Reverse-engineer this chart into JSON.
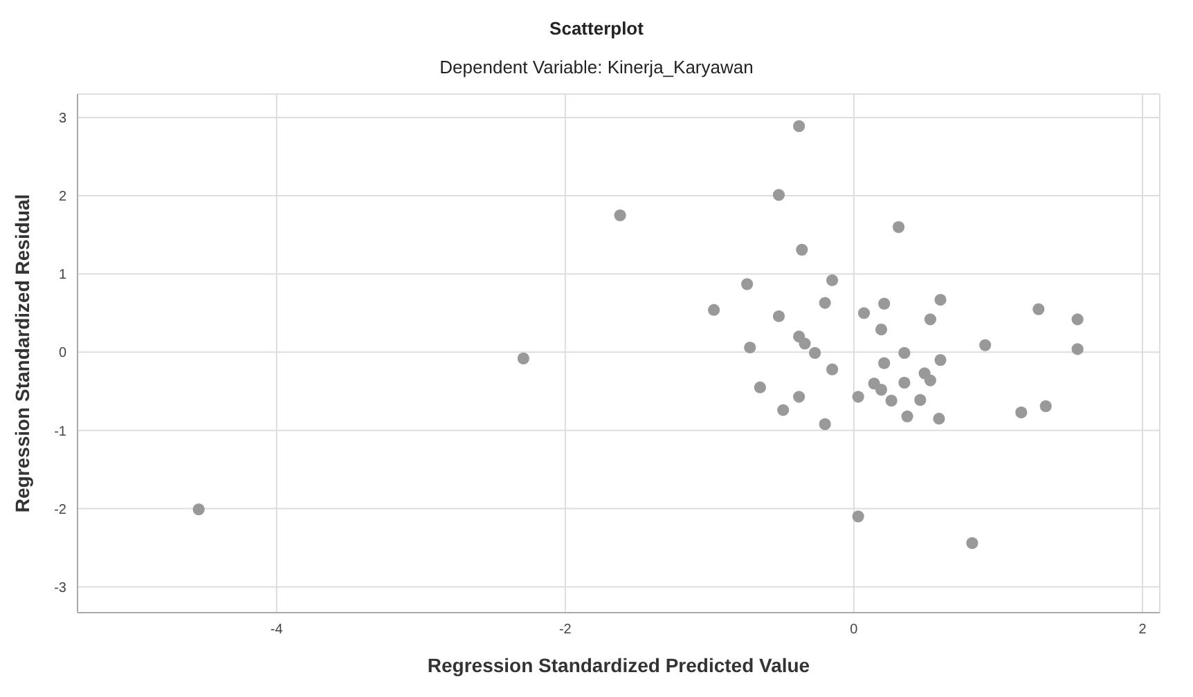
{
  "chart_data": {
    "type": "scatter",
    "title": "Scatterplot",
    "subtitle": "Dependent Variable: Kinerja_Karyawan",
    "xlabel": "Regression Standardized Predicted Value",
    "ylabel": "Regression Standardized Residual",
    "x": [
      -4.54,
      -2.29,
      -1.62,
      -0.38,
      -0.52,
      0.31,
      -0.36,
      -0.74,
      -0.15,
      -0.97,
      -0.52,
      -0.2,
      0.07,
      0.21,
      0.6,
      0.19,
      0.53,
      1.28,
      1.55,
      1.55,
      0.91,
      -0.72,
      -0.38,
      -0.34,
      -0.27,
      0.35,
      -0.15,
      0.21,
      0.6,
      0.49,
      0.53,
      -0.65,
      -0.38,
      -0.49,
      -0.2,
      0.03,
      0.14,
      0.19,
      0.35,
      0.26,
      0.46,
      0.37,
      0.59,
      1.16,
      1.33,
      0.03,
      0.82
    ],
    "values": [
      -2.01,
      -0.08,
      1.75,
      2.89,
      2.01,
      1.6,
      1.31,
      0.87,
      0.92,
      0.54,
      0.46,
      0.63,
      0.5,
      0.62,
      0.67,
      0.29,
      0.42,
      0.55,
      0.42,
      0.04,
      0.09,
      0.06,
      0.2,
      0.11,
      -0.01,
      -0.01,
      -0.22,
      -0.14,
      -0.1,
      -0.27,
      -0.36,
      -0.45,
      -0.57,
      -0.74,
      -0.92,
      -0.57,
      -0.4,
      -0.48,
      -0.39,
      -0.62,
      -0.61,
      -0.82,
      -0.85,
      -0.77,
      -0.69,
      -2.1,
      -2.44
    ],
    "color": "#999999",
    "marker": "circle",
    "grid": true,
    "xlim": [
      -5.38,
      2.12
    ],
    "xticks": [
      -4,
      -2,
      0,
      2
    ],
    "ylim": [
      -3.33,
      3.3
    ],
    "yticks": [
      -3,
      -2,
      -1,
      0,
      1,
      2,
      3
    ]
  }
}
